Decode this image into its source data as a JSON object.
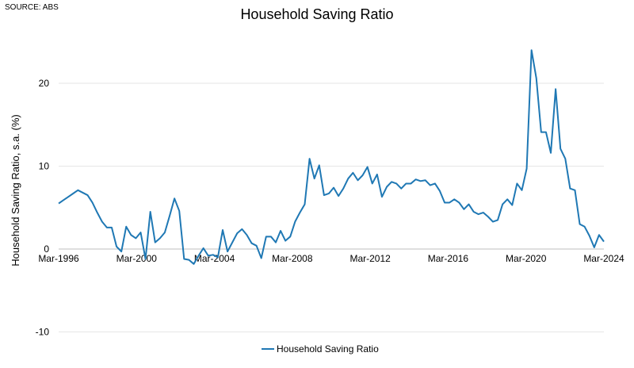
{
  "source_note": "SOURCE: ABS",
  "chart_data": {
    "type": "line",
    "title": "Household Saving Ratio",
    "xlabel": "",
    "ylabel": "Household Saving Ratio, s.a. (%)",
    "ylim": [
      -10,
      25
    ],
    "y_ticks": [
      -10,
      0,
      10,
      20
    ],
    "y_tick_labels": [
      "-10",
      "0",
      "10",
      "20"
    ],
    "x_tick_labels": [
      "Mar-1996",
      "Mar-2000",
      "Mar-2004",
      "Mar-2008",
      "Mar-2012",
      "Mar-2016",
      "Mar-2020",
      "Mar-2024"
    ],
    "x_tick_years": [
      1996,
      2000,
      2004,
      2008,
      2012,
      2016,
      2020,
      2024
    ],
    "grid": "horizontal",
    "legend_position": "bottom",
    "color": "#1f78b4",
    "x_start": "Mar-1996",
    "x_end": "Mar-2024",
    "frequency": "quarterly",
    "series": [
      {
        "name": "Household Saving Ratio",
        "values": [
          5.5,
          5.9,
          6.3,
          6.7,
          7.1,
          6.8,
          6.5,
          5.6,
          4.4,
          3.3,
          2.6,
          2.6,
          0.3,
          -0.3,
          2.7,
          1.7,
          1.3,
          2.0,
          -1.2,
          4.5,
          0.8,
          1.3,
          2.0,
          4.0,
          6.1,
          4.6,
          -1.2,
          -1.3,
          -1.8,
          -0.8,
          0.1,
          -0.8,
          -0.7,
          -1.0,
          2.3,
          -0.3,
          0.8,
          1.9,
          2.4,
          1.7,
          0.7,
          0.4,
          -1.1,
          1.5,
          1.5,
          0.8,
          2.2,
          1.0,
          1.5,
          3.3,
          4.4,
          5.4,
          10.9,
          8.5,
          10.1,
          6.5,
          6.7,
          7.4,
          6.4,
          7.3,
          8.5,
          9.2,
          8.3,
          8.9,
          9.9,
          7.9,
          9.0,
          6.3,
          7.5,
          8.1,
          7.9,
          7.3,
          7.9,
          7.9,
          8.4,
          8.2,
          8.3,
          7.7,
          7.9,
          7.0,
          5.6,
          5.6,
          6.0,
          5.6,
          4.8,
          5.4,
          4.5,
          4.2,
          4.4,
          3.9,
          3.3,
          3.5,
          5.4,
          6.0,
          5.3,
          7.9,
          7.1,
          9.7,
          24.0,
          20.6,
          14.1,
          14.1,
          11.6,
          19.3,
          12.1,
          10.9,
          7.3,
          7.1,
          3.0,
          2.7,
          1.6,
          0.2,
          1.7,
          0.9
        ]
      }
    ]
  }
}
